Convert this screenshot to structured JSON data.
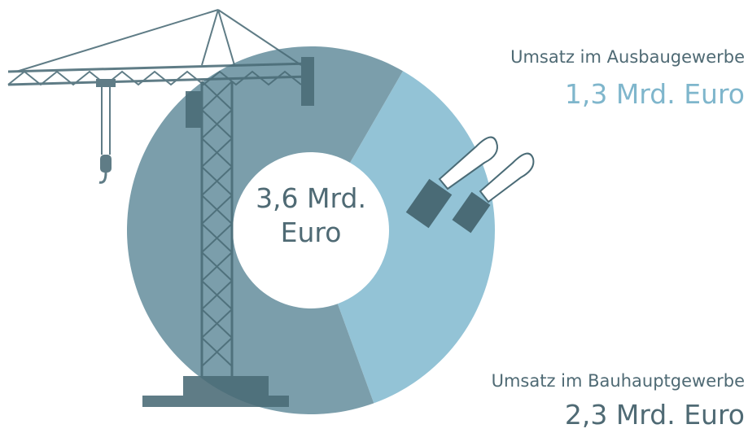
{
  "chart_data": {
    "type": "donut",
    "categories": [
      "Umsatz im Ausbaugewerbe",
      "Umsatz im Bauhauptgewerbe"
    ],
    "values": [
      1.3,
      2.3
    ],
    "value_labels": [
      "1,3 Mrd. Euro",
      "2,3 Mrd. Euro"
    ],
    "colors": [
      "#93c3d6",
      "#7b9eab"
    ],
    "label_colors": [
      "#7fb6cc",
      "#4f6a74"
    ],
    "center_label": "3,6 Mrd. Euro"
  }
}
